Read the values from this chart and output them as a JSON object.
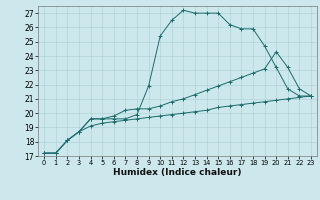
{
  "xlabel": "Humidex (Indice chaleur)",
  "background_color": "#cde8ec",
  "grid_color": "#b0d4d8",
  "line_color": "#1a6b6b",
  "xlim": [
    -0.5,
    23.5
  ],
  "ylim": [
    17,
    27.5
  ],
  "yticks": [
    17,
    18,
    19,
    20,
    21,
    22,
    23,
    24,
    25,
    26,
    27
  ],
  "xticks": [
    0,
    1,
    2,
    3,
    4,
    5,
    6,
    7,
    8,
    9,
    10,
    11,
    12,
    13,
    14,
    15,
    16,
    17,
    18,
    19,
    20,
    21,
    22,
    23
  ],
  "series": [
    {
      "x": [
        0,
        1,
        2,
        3,
        4,
        5,
        6,
        7,
        8,
        9,
        10,
        11,
        12,
        13,
        14,
        15,
        16,
        17,
        18,
        19,
        20,
        21,
        22,
        23
      ],
      "y": [
        17.2,
        17.2,
        18.1,
        18.7,
        19.6,
        19.6,
        19.6,
        19.6,
        19.9,
        21.9,
        25.4,
        26.5,
        27.2,
        27.0,
        27.0,
        27.0,
        26.2,
        25.9,
        25.9,
        24.7,
        23.2,
        21.7,
        21.2,
        21.2
      ]
    },
    {
      "x": [
        0,
        1,
        2,
        3,
        4,
        5,
        6,
        7,
        8,
        9,
        10,
        11,
        12,
        13,
        14,
        15,
        16,
        17,
        18,
        19,
        20,
        21,
        22,
        23
      ],
      "y": [
        17.2,
        17.2,
        18.1,
        18.7,
        19.6,
        19.6,
        19.8,
        20.2,
        20.3,
        20.3,
        20.5,
        20.8,
        21.0,
        21.3,
        21.6,
        21.9,
        22.2,
        22.5,
        22.8,
        23.1,
        24.3,
        23.2,
        21.7,
        21.2
      ]
    },
    {
      "x": [
        0,
        1,
        2,
        3,
        4,
        5,
        6,
        7,
        8,
        9,
        10,
        11,
        12,
        13,
        14,
        15,
        16,
        17,
        18,
        19,
        20,
        21,
        22,
        23
      ],
      "y": [
        17.2,
        17.2,
        18.1,
        18.7,
        19.1,
        19.3,
        19.4,
        19.5,
        19.6,
        19.7,
        19.8,
        19.9,
        20.0,
        20.1,
        20.2,
        20.4,
        20.5,
        20.6,
        20.7,
        20.8,
        20.9,
        21.0,
        21.1,
        21.2
      ]
    }
  ]
}
